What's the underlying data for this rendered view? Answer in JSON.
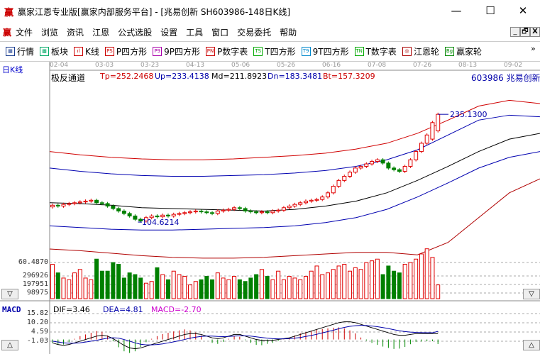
{
  "window": {
    "logo": "赢",
    "title": "赢家江恩专业版[赢家内部服务平台] - [兆易创新  SH603986-148日K线]",
    "min": "—",
    "max": "☐",
    "close": "✕"
  },
  "menu": {
    "logo": "赢",
    "items": [
      "文件",
      "浏览",
      "资讯",
      "江恩",
      "公式选股",
      "设置",
      "工具",
      "窗口",
      "交易委托",
      "帮助"
    ],
    "mdi": [
      "_",
      "🗗",
      "X"
    ]
  },
  "toolbar": {
    "items": [
      {
        "icon": "▦",
        "label": "行情",
        "color": "#1a3d8f"
      },
      {
        "icon": "▩",
        "label": "板块",
        "color": "#0a6"
      },
      {
        "icon": "ıl",
        "label": "K线",
        "color": "#c00"
      },
      {
        "icon": "PS",
        "label": "P四方形",
        "color": "#c00"
      },
      {
        "icon": "P9",
        "label": "9P四方形",
        "color": "#a0a"
      },
      {
        "icon": "PN",
        "label": "P数字表",
        "color": "#c00"
      },
      {
        "icon": "TS",
        "label": "T四方形",
        "color": "#0a0"
      },
      {
        "icon": "T9",
        "label": "9T四方形",
        "color": "#08c"
      },
      {
        "icon": "TN",
        "label": "T数字表",
        "color": "#0a0"
      },
      {
        "icon": "◎",
        "label": "江恩轮",
        "color": "#a00"
      },
      {
        "icon": "Bg",
        "label": "赢家轮",
        "color": "#080"
      }
    ],
    "more": "»"
  },
  "chart": {
    "period_label": "日K线",
    "dates": [
      "02-04",
      "03-03",
      "03-23",
      "04-13",
      "05-06",
      "05-26",
      "06-16",
      "07-08",
      "07-26",
      "08-13",
      "09-02"
    ],
    "indicator": {
      "name": "极反通道",
      "tp": "Tp=252.2468",
      "up": "Up=233.4138",
      "md": "Md=211.8923",
      "dn": "Dn=183.3481",
      "bt": "Bt=157.3209"
    },
    "stock": "603986 兆易创新",
    "annotations": {
      "high": "235.1300",
      "low": "104.6214",
      "axis_low": "60.4870"
    },
    "colors": {
      "up": "#e00000",
      "down": "#008000",
      "upper_band": "#d00000",
      "mid_band": "#0000b0",
      "center": "#000000"
    },
    "open": [
      123,
      125,
      124,
      126,
      127,
      128,
      129,
      130,
      131,
      128,
      127,
      124,
      121,
      118,
      115,
      112,
      108,
      106,
      110,
      112,
      111,
      113,
      112,
      114,
      115,
      116,
      117,
      118,
      117,
      116,
      115,
      118,
      119,
      120,
      122,
      121,
      118,
      117,
      116,
      117,
      116,
      118,
      119,
      122,
      124,
      126,
      128,
      130,
      131,
      132,
      135,
      140,
      148,
      155,
      160,
      165,
      170,
      172,
      175,
      178,
      180,
      176,
      170,
      168,
      166,
      172,
      180,
      190,
      200,
      205,
      215
    ],
    "close": [
      125,
      124,
      126,
      127,
      128,
      129,
      130,
      131,
      128,
      127,
      124,
      121,
      118,
      115,
      112,
      108,
      106,
      110,
      112,
      111,
      113,
      112,
      114,
      115,
      116,
      117,
      118,
      117,
      116,
      115,
      118,
      119,
      120,
      122,
      121,
      118,
      117,
      116,
      117,
      116,
      118,
      119,
      122,
      124,
      126,
      128,
      130,
      131,
      132,
      135,
      140,
      148,
      155,
      160,
      165,
      170,
      172,
      175,
      178,
      180,
      176,
      170,
      168,
      166,
      172,
      180,
      190,
      200,
      210,
      225,
      235
    ],
    "bands": {
      "top": [
        190,
        186,
        183,
        181,
        180,
        180,
        181,
        183,
        185,
        188,
        193,
        200,
        212,
        228,
        245,
        252,
        248
      ],
      "upper": [
        170,
        166,
        163,
        161,
        160,
        160,
        161,
        162,
        164,
        167,
        172,
        180,
        192,
        210,
        228,
        234,
        232
      ],
      "center": [
        128,
        127,
        125,
        122,
        121,
        120,
        119,
        118,
        120,
        124,
        130,
        140,
        155,
        172,
        190,
        205,
        212
      ],
      "lower": [
        100,
        98,
        96,
        95,
        95,
        96,
        97,
        98,
        100,
        104,
        110,
        120,
        135,
        152,
        170,
        183,
        190
      ],
      "bottom": [
        72,
        70,
        67,
        64,
        62,
        61,
        61,
        62,
        64,
        66,
        68,
        68,
        65,
        80,
        110,
        140,
        157
      ]
    },
    "volume": {
      "ticks": [
        "296926",
        "197951",
        "98975"
      ],
      "values": [
        200,
        150,
        120,
        110,
        150,
        170,
        120,
        110,
        230,
        160,
        160,
        210,
        200,
        120,
        150,
        140,
        120,
        90,
        100,
        180,
        140,
        110,
        160,
        140,
        130,
        80,
        100,
        110,
        130,
        110,
        150,
        120,
        110,
        130,
        110,
        100,
        120,
        140,
        170,
        130,
        110,
        160,
        110,
        130,
        120,
        110,
        130,
        160,
        190,
        140,
        150,
        170,
        190,
        200,
        160,
        180,
        170,
        210,
        220,
        230,
        140,
        190,
        160,
        150,
        200,
        210,
        230,
        260,
        290,
        240,
        80
      ]
    },
    "macd": {
      "label": "MACD",
      "dif": "DIF=3.46",
      "dea": "DEA=4.81",
      "macd": "MACD=-2.70",
      "ticks": [
        "15.82",
        "10.20",
        "4.59",
        "-1.03"
      ],
      "dif_values": [
        -2,
        -3,
        -3.5,
        -3,
        -2,
        -1,
        0,
        1,
        2,
        2.5,
        2,
        0.5,
        -1.5,
        -3.5,
        -5,
        -5.5,
        -5,
        -4,
        -3,
        -2,
        -1,
        0,
        1,
        2,
        3,
        3.5,
        3.5,
        3,
        2,
        1,
        0.5,
        1,
        2,
        3,
        3,
        2,
        1,
        0,
        -0.5,
        -0.5,
        -0.5,
        0,
        0.5,
        1,
        2,
        3,
        4,
        5,
        6,
        7,
        8,
        9,
        10,
        10.5,
        10.5,
        10,
        9,
        8,
        7,
        6,
        5,
        4,
        3,
        2.5,
        2.5,
        3,
        3.5,
        3.5,
        3.5,
        3.5,
        3.46
      ],
      "dea_values": [
        -1,
        -1.5,
        -2,
        -2.2,
        -2.2,
        -2,
        -1.5,
        -1,
        -0.5,
        0.2,
        0.8,
        1,
        0.8,
        0,
        -1,
        -2,
        -2.8,
        -3.2,
        -3.2,
        -3,
        -2.6,
        -2,
        -1.4,
        -0.7,
        0,
        0.8,
        1.4,
        1.8,
        2,
        2,
        1.8,
        1.7,
        1.8,
        2,
        2.2,
        2.2,
        2,
        1.6,
        1.2,
        0.8,
        0.5,
        0.4,
        0.4,
        0.5,
        0.8,
        1.2,
        1.8,
        2.4,
        3.1,
        3.9,
        4.7,
        5.5,
        6.4,
        7.2,
        7.8,
        8.2,
        8.4,
        8.3,
        8,
        7.6,
        7.1,
        6.5,
        5.8,
        5.2,
        4.7,
        4.4,
        4.2,
        4.1,
        4.0,
        4.0,
        4.81
      ]
    }
  }
}
